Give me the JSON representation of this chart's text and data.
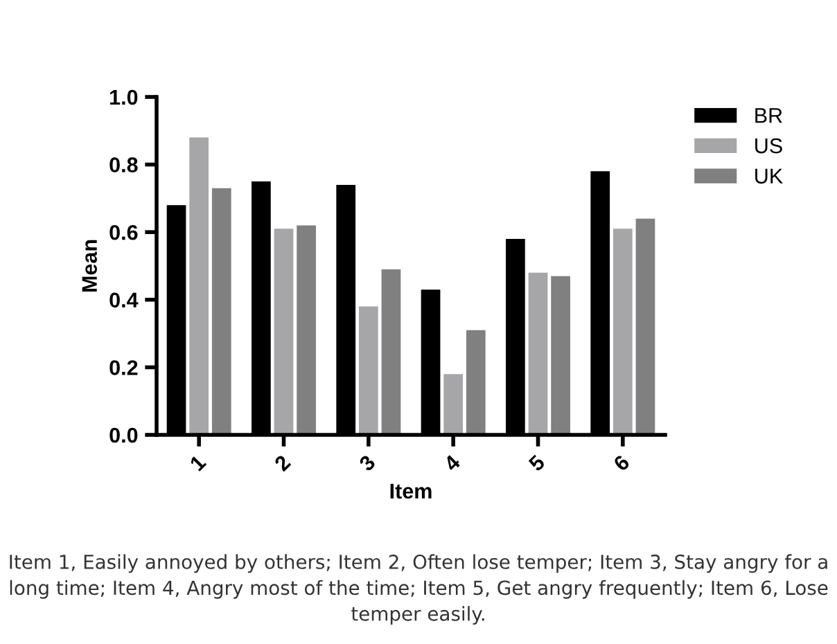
{
  "chart_data": {
    "type": "bar",
    "xlabel": "Item",
    "ylabel": "Mean",
    "categories": [
      "1",
      "2",
      "3",
      "4",
      "5",
      "6"
    ],
    "series": [
      {
        "name": "BR",
        "color": "#000000",
        "values": [
          0.68,
          0.75,
          0.74,
          0.43,
          0.58,
          0.78
        ]
      },
      {
        "name": "US",
        "color": "#a6a6a8",
        "values": [
          0.88,
          0.61,
          0.38,
          0.18,
          0.48,
          0.61
        ]
      },
      {
        "name": "UK",
        "color": "#808080",
        "values": [
          0.73,
          0.62,
          0.49,
          0.31,
          0.47,
          0.64
        ]
      }
    ],
    "ylim": [
      0,
      1.0
    ],
    "yticks": [
      {
        "value": 0,
        "label": "0.0"
      },
      0.2,
      0.4,
      0.6,
      0.8,
      {
        "value": 1.0,
        "label": "1.0"
      }
    ],
    "grid": false,
    "legend": "right",
    "annotations": [
      "Item 1, Easily annoyed by others; Item 2, Often lose temper; Item 3, Stay angry for a long time; Item 4, Angry most of the time; Item 5, Get angry frequently; Item 6, Lose temper easily."
    ]
  }
}
